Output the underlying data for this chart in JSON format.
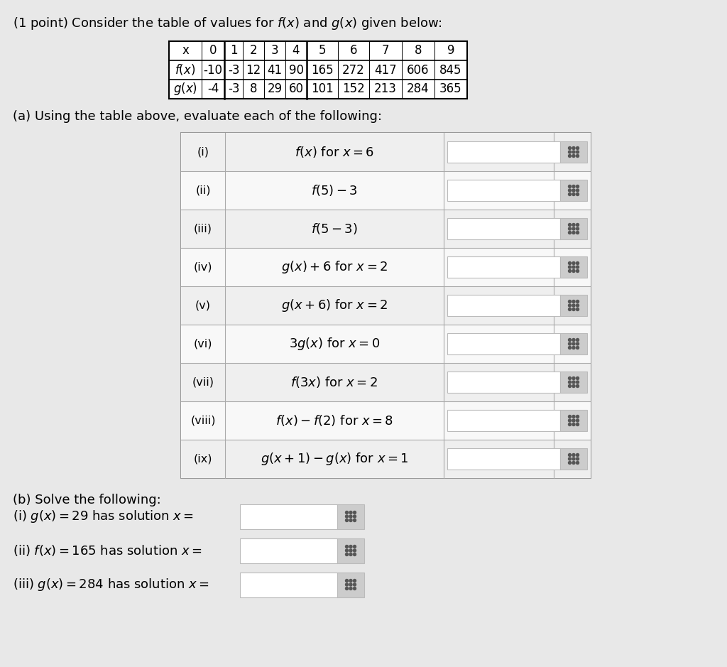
{
  "bg_color": "#e8e8e8",
  "header_text": "(1 point) Consider the table of values for $f(x)$ and $g(x)$ given below:",
  "x_vals": [
    "x",
    "0",
    "1",
    "2",
    "3",
    "4",
    "5",
    "6",
    "7",
    "8",
    "9"
  ],
  "fx_vals": [
    "$f(x)$",
    "-10",
    "-3",
    "12",
    "41",
    "90",
    "165",
    "272",
    "417",
    "606",
    "845"
  ],
  "gx_vals": [
    "$g(x)$",
    "-4",
    "-3",
    "8",
    "29",
    "60",
    "101",
    "152",
    "213",
    "284",
    "365"
  ],
  "part_a_header": "(a) Using the table above, evaluate each of the following:",
  "part_a_rows": [
    [
      "(i)",
      "$f(x)$ for $x = 6$"
    ],
    [
      "(ii)",
      "$f(5) - 3$"
    ],
    [
      "(iii)",
      "$f(5 - 3)$"
    ],
    [
      "(iv)",
      "$g(x) + 6$ for $x = 2$"
    ],
    [
      "(v)",
      "$g(x + 6)$ for $x = 2$"
    ],
    [
      "(vi)",
      "$3g(x)$ for $x = 0$"
    ],
    [
      "(vii)",
      "$f(3x)$ for $x = 2$"
    ],
    [
      "(viii)",
      "$f(x) - f(2)$ for $x = 8$"
    ],
    [
      "(ix)",
      "$g(x + 1) - g(x)$ for $x = 1$"
    ]
  ],
  "part_b_header": "(b) Solve the following:",
  "part_b_rows": [
    [
      "(i)",
      "$g(x) = 29$ has solution $x =$"
    ],
    [
      "(ii)",
      "$f(x) = 165$ has solution $x =$"
    ],
    [
      "(iii)",
      "$g(x) = 284$ has solution $x =$"
    ]
  ]
}
